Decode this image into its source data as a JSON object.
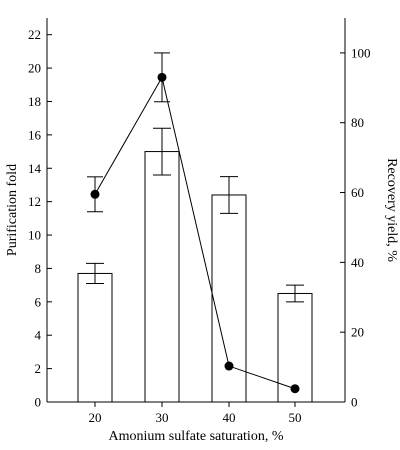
{
  "chart_data": {
    "type": "bar",
    "categories": [
      "20",
      "30",
      "40",
      "50"
    ],
    "xlabel": "Amonium sulfate saturation, %",
    "left_axis": {
      "label": "Purification fold",
      "range": [
        0,
        23
      ],
      "ticks": [
        "0",
        "2",
        "4",
        "6",
        "8",
        "10",
        "12",
        "14",
        "16",
        "18",
        "20",
        "22"
      ]
    },
    "right_axis": {
      "label": "Recovery yield, %",
      "range": [
        0,
        110
      ],
      "ticks": [
        "0",
        "20",
        "40",
        "60",
        "80",
        "100"
      ]
    },
    "series": [
      {
        "kind": "bar",
        "axis": "left",
        "values": [
          7.7,
          15.0,
          12.4,
          6.5
        ],
        "errors": [
          0.6,
          1.4,
          1.1,
          0.5
        ],
        "color": "#ffffff"
      },
      {
        "kind": "line",
        "axis": "right",
        "values": [
          59.5,
          93.0,
          10.3,
          3.8
        ],
        "errors": [
          5.0,
          7.0,
          0,
          0
        ],
        "color": "#000000"
      }
    ]
  }
}
